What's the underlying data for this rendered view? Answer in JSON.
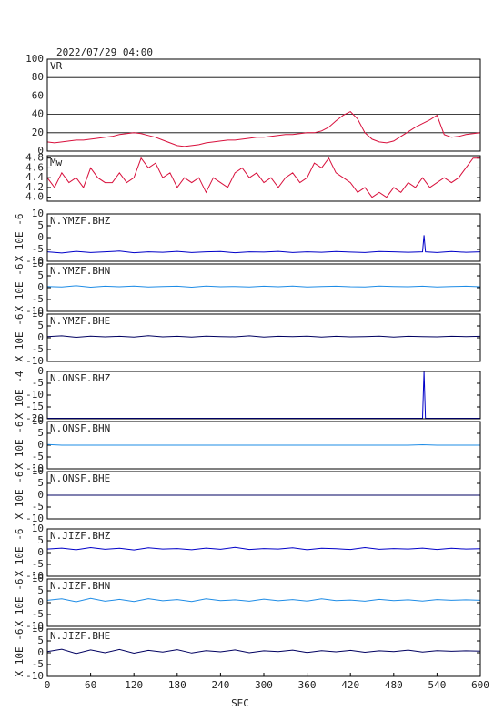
{
  "chart_data": [
    {
      "type": "line",
      "title": "2022/07/29 04:00",
      "xlim": [
        0,
        600
      ],
      "ylim": [
        0,
        100
      ],
      "yticks": [
        0,
        20,
        40,
        60,
        80,
        100
      ],
      "grid": true,
      "x": [
        0,
        10,
        20,
        30,
        40,
        50,
        60,
        70,
        80,
        90,
        100,
        110,
        120,
        130,
        140,
        150,
        160,
        170,
        180,
        190,
        200,
        210,
        220,
        230,
        240,
        250,
        260,
        270,
        280,
        290,
        300,
        310,
        320,
        330,
        340,
        350,
        360,
        370,
        380,
        390,
        400,
        410,
        420,
        430,
        440,
        450,
        460,
        470,
        480,
        490,
        500,
        510,
        520,
        530,
        540,
        550,
        560,
        570,
        580,
        590,
        600
      ],
      "series": [
        {
          "name": "VR",
          "color": "#d8103c",
          "values": [
            10,
            9,
            10,
            11,
            12,
            12,
            13,
            14,
            15,
            16,
            18,
            19,
            20,
            19,
            17,
            15,
            12,
            9,
            6,
            5,
            6,
            7,
            9,
            10,
            11,
            12,
            12,
            13,
            14,
            15,
            15,
            16,
            17,
            18,
            18,
            19,
            20,
            20,
            22,
            26,
            33,
            39,
            43,
            35,
            20,
            13,
            10,
            9,
            11,
            16,
            21,
            26,
            30,
            34,
            39,
            18,
            15,
            16,
            18,
            19,
            20
          ]
        }
      ]
    },
    {
      "type": "line",
      "xlim": [
        0,
        600
      ],
      "ylim": [
        3.92,
        4.85
      ],
      "yticks": [
        {
          "value": 4,
          "label": "4.0"
        },
        4.2,
        4.4,
        4.6,
        4.8
      ],
      "grid": false,
      "x": [
        0,
        10,
        20,
        30,
        40,
        50,
        60,
        70,
        80,
        90,
        100,
        110,
        120,
        130,
        140,
        150,
        160,
        170,
        180,
        190,
        200,
        210,
        220,
        230,
        240,
        250,
        260,
        270,
        280,
        290,
        300,
        310,
        320,
        330,
        340,
        350,
        360,
        370,
        380,
        390,
        400,
        410,
        420,
        430,
        440,
        450,
        460,
        470,
        480,
        490,
        500,
        510,
        520,
        530,
        540,
        550,
        560,
        570,
        580,
        590,
        600
      ],
      "series": [
        {
          "name": "Mw",
          "color": "#d8103c",
          "values": [
            4.4,
            4.2,
            4.5,
            4.3,
            4.4,
            4.2,
            4.6,
            4.4,
            4.3,
            4.3,
            4.5,
            4.3,
            4.4,
            4.8,
            4.6,
            4.7,
            4.4,
            4.5,
            4.2,
            4.4,
            4.3,
            4.4,
            4.1,
            4.4,
            4.3,
            4.2,
            4.5,
            4.6,
            4.4,
            4.5,
            4.3,
            4.4,
            4.2,
            4.4,
            4.5,
            4.3,
            4.4,
            4.7,
            4.6,
            4.8,
            4.5,
            4.4,
            4.3,
            4.1,
            4.2,
            4.0,
            4.1,
            4.0,
            4.2,
            4.1,
            4.3,
            4.2,
            4.4,
            4.2,
            4.3,
            4.4,
            4.3,
            4.4,
            4.6,
            4.8,
            4.8
          ]
        }
      ]
    },
    {
      "type": "line",
      "ylabel": "X 10E -6",
      "xlim": [
        0,
        600
      ],
      "ylim": [
        -10,
        10
      ],
      "yticks": [
        -10,
        -5,
        0,
        5,
        10
      ],
      "x": [
        0,
        20,
        40,
        60,
        80,
        100,
        120,
        140,
        160,
        180,
        200,
        220,
        240,
        260,
        280,
        300,
        320,
        340,
        360,
        380,
        400,
        420,
        440,
        460,
        480,
        500,
        520,
        522,
        524,
        540,
        560,
        580,
        600
      ],
      "series": [
        {
          "name": "N.YMZF.BHZ",
          "color": "#0000c8",
          "values": [
            -6,
            -6.5,
            -5.8,
            -6.3,
            -6,
            -5.7,
            -6.4,
            -6,
            -6.2,
            -5.8,
            -6.3,
            -6,
            -5.9,
            -6.4,
            -6,
            -6.1,
            -5.8,
            -6.3,
            -6,
            -6.2,
            -5.9,
            -6.1,
            -6.3,
            -5.9,
            -6,
            -6.2,
            -6,
            1,
            -6,
            -6.3,
            -5.9,
            -6.2,
            -6
          ]
        }
      ]
    },
    {
      "type": "line",
      "ylabel": "X 10E -6",
      "xlim": [
        0,
        600
      ],
      "ylim": [
        -10,
        10
      ],
      "yticks": [
        -10,
        -5,
        0,
        5,
        10
      ],
      "x": [
        0,
        20,
        40,
        60,
        80,
        100,
        120,
        140,
        160,
        180,
        200,
        220,
        240,
        260,
        280,
        300,
        320,
        340,
        360,
        380,
        400,
        420,
        440,
        460,
        480,
        500,
        520,
        540,
        560,
        580,
        600
      ],
      "series": [
        {
          "name": "N.YMZF.BHN",
          "color": "#1e8ce6",
          "values": [
            0.5,
            0.3,
            0.8,
            0.2,
            0.6,
            0.4,
            0.7,
            0.3,
            0.5,
            0.6,
            0.2,
            0.7,
            0.4,
            0.5,
            0.3,
            0.6,
            0.4,
            0.7,
            0.3,
            0.5,
            0.6,
            0.4,
            0.3,
            0.7,
            0.5,
            0.4,
            0.6,
            0.3,
            0.5,
            0.6,
            0.4
          ]
        }
      ]
    },
    {
      "type": "line",
      "ylabel": "X 10E -6",
      "xlim": [
        0,
        600
      ],
      "ylim": [
        -10,
        10
      ],
      "yticks": [
        -10,
        -5,
        0,
        5,
        10
      ],
      "x": [
        0,
        20,
        40,
        60,
        80,
        100,
        120,
        140,
        160,
        180,
        200,
        220,
        240,
        260,
        280,
        300,
        320,
        340,
        360,
        380,
        400,
        420,
        440,
        460,
        480,
        500,
        520,
        540,
        560,
        580,
        600
      ],
      "series": [
        {
          "name": "N.YMZF.BHE",
          "color": "#000060",
          "values": [
            0.5,
            0.8,
            0.2,
            0.7,
            0.4,
            0.6,
            0.3,
            0.9,
            0.4,
            0.6,
            0.3,
            0.7,
            0.5,
            0.4,
            0.8,
            0.3,
            0.6,
            0.5,
            0.7,
            0.3,
            0.6,
            0.4,
            0.5,
            0.7,
            0.3,
            0.6,
            0.5,
            0.4,
            0.6,
            0.5,
            0.6
          ]
        }
      ]
    },
    {
      "type": "line",
      "ylabel": "X 10E -4",
      "xlim": [
        0,
        600
      ],
      "ylim": [
        -20,
        0
      ],
      "yticks": [
        -20,
        -15,
        -10,
        -5,
        0
      ],
      "x": [
        0,
        20,
        40,
        60,
        80,
        100,
        120,
        140,
        160,
        180,
        200,
        220,
        240,
        260,
        280,
        300,
        320,
        340,
        360,
        380,
        400,
        420,
        440,
        460,
        480,
        500,
        520,
        522,
        524,
        540,
        560,
        580,
        600
      ],
      "series": [
        {
          "name": "N.ONSF.BHZ",
          "color": "#0000c8",
          "values": [
            -19.8,
            -19.8,
            -19.8,
            -19.8,
            -19.8,
            -19.8,
            -19.8,
            -19.8,
            -19.8,
            -19.8,
            -19.8,
            -19.8,
            -19.8,
            -19.8,
            -19.8,
            -19.8,
            -19.8,
            -19.8,
            -19.8,
            -19.8,
            -19.8,
            -19.8,
            -19.8,
            -19.8,
            -19.8,
            -19.8,
            -19.8,
            0,
            -19.8,
            -19.8,
            -19.8,
            -19.8,
            -19.8
          ]
        }
      ]
    },
    {
      "type": "line",
      "ylabel": "X 10E -6",
      "xlim": [
        0,
        600
      ],
      "ylim": [
        -10,
        10
      ],
      "yticks": [
        -10,
        -5,
        0,
        5,
        10
      ],
      "x": [
        0,
        20,
        40,
        60,
        80,
        100,
        120,
        140,
        160,
        180,
        200,
        220,
        240,
        260,
        280,
        300,
        320,
        340,
        360,
        380,
        400,
        420,
        440,
        460,
        480,
        500,
        520,
        540,
        560,
        580,
        600
      ],
      "series": [
        {
          "name": "N.ONSF.BHN",
          "color": "#1e8ce6",
          "values": [
            0.3,
            0,
            0,
            0,
            0,
            0,
            0,
            0,
            0,
            0,
            0,
            0,
            0,
            0,
            0,
            0,
            0,
            0,
            0,
            0,
            0,
            0,
            0,
            0,
            0,
            0,
            0.2,
            0,
            0,
            0,
            0
          ]
        }
      ]
    },
    {
      "type": "line",
      "ylabel": "X 10E -6",
      "xlim": [
        0,
        600
      ],
      "ylim": [
        -10,
        10
      ],
      "yticks": [
        -10,
        -5,
        0,
        5,
        10
      ],
      "x": [
        0,
        600
      ],
      "series": [
        {
          "name": "N.ONSF.BHE",
          "color": "#000060",
          "values": [
            0,
            0
          ]
        }
      ]
    },
    {
      "type": "line",
      "ylabel": "X 10E -6",
      "xlim": [
        0,
        600
      ],
      "ylim": [
        -10,
        10
      ],
      "yticks": [
        -10,
        -5,
        0,
        5,
        10
      ],
      "x": [
        0,
        20,
        40,
        60,
        80,
        100,
        120,
        140,
        160,
        180,
        200,
        220,
        240,
        260,
        280,
        300,
        320,
        340,
        360,
        380,
        400,
        420,
        440,
        460,
        480,
        500,
        520,
        540,
        560,
        580,
        600
      ],
      "series": [
        {
          "name": "N.JIZF.BHZ",
          "color": "#0000c8",
          "values": [
            1.5,
            1.9,
            1.2,
            2.1,
            1.4,
            1.8,
            1.1,
            2,
            1.5,
            1.7,
            1.2,
            1.9,
            1.4,
            2.2,
            1.3,
            1.7,
            1.5,
            2,
            1.2,
            1.8,
            1.6,
            1.3,
            2.1,
            1.4,
            1.7,
            1.5,
            1.9,
            1.3,
            1.8,
            1.5,
            1.6
          ]
        }
      ]
    },
    {
      "type": "line",
      "ylabel": "X 10E -6",
      "xlim": [
        0,
        600
      ],
      "ylim": [
        -10,
        10
      ],
      "yticks": [
        -10,
        -5,
        0,
        5,
        10
      ],
      "x": [
        0,
        20,
        40,
        60,
        80,
        100,
        120,
        140,
        160,
        180,
        200,
        220,
        240,
        260,
        280,
        300,
        320,
        340,
        360,
        380,
        400,
        420,
        440,
        460,
        480,
        500,
        520,
        540,
        560,
        580,
        600
      ],
      "series": [
        {
          "name": "N.JIZF.BHN",
          "color": "#1e8ce6",
          "values": [
            1,
            1.6,
            0.4,
            1.8,
            0.6,
            1.4,
            0.5,
            1.7,
            0.8,
            1.3,
            0.5,
            1.6,
            0.9,
            1.2,
            0.6,
            1.5,
            0.8,
            1.3,
            0.7,
            1.6,
            0.9,
            1.1,
            0.6,
            1.4,
            0.9,
            1.2,
            0.7,
            1.3,
            1,
            1.2,
            1
          ]
        }
      ]
    },
    {
      "type": "line",
      "ylabel": "X 10E -6",
      "xlabel": "SEC",
      "xlim": [
        0,
        600
      ],
      "ylim": [
        -10,
        10
      ],
      "xticks": [
        0,
        60,
        120,
        180,
        240,
        300,
        360,
        420,
        480,
        540,
        600
      ],
      "yticks": [
        -10,
        -5,
        0,
        5,
        10
      ],
      "x": [
        0,
        20,
        40,
        60,
        80,
        100,
        120,
        140,
        160,
        180,
        200,
        220,
        240,
        260,
        280,
        300,
        320,
        340,
        360,
        380,
        400,
        420,
        440,
        460,
        480,
        500,
        520,
        540,
        560,
        580,
        600
      ],
      "series": [
        {
          "name": "N.JIZF.BHE",
          "color": "#000060",
          "values": [
            0.5,
            1.5,
            -0.3,
            1.2,
            0,
            1.4,
            -0.2,
            1,
            0.3,
            1.3,
            -0.1,
            0.9,
            0.4,
            1.2,
            0,
            0.8,
            0.5,
            1.1,
            0.1,
            0.9,
            0.4,
            1,
            0.2,
            0.8,
            0.5,
            1.1,
            0.3,
            0.9,
            0.6,
            0.8,
            0.7
          ]
        }
      ]
    }
  ]
}
